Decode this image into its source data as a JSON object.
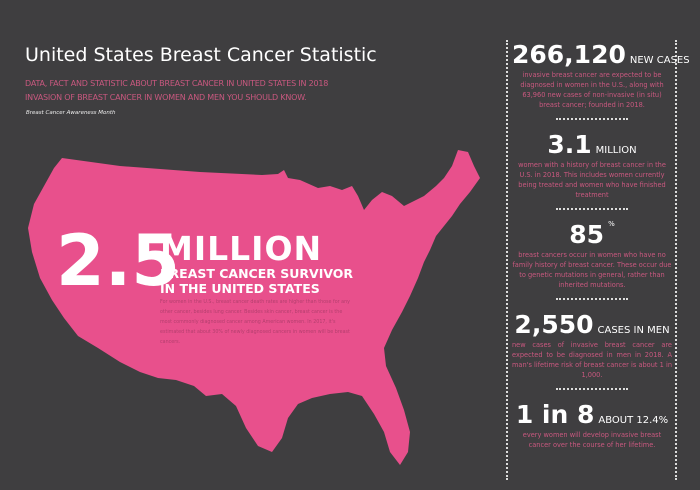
{
  "header": {
    "title": "United States Breast Cancer Statistic",
    "subtitle_lines": [
      "DATA, FACT AND STATISTIC ABOUT BREAST CANCER IN UNITED STATES IN 2018",
      "INVASION OF BREAST CANCER IN WOMEN AND MEN YOU SHOULD KNOW."
    ],
    "tagline": "Breast Cancer Awareness Month"
  },
  "colors": {
    "background": "#3f3e40",
    "accent": "#e8508c",
    "text_accent": "#c9587f"
  },
  "hero": {
    "number": "2.5",
    "unit": "MILLION",
    "line1": "BREAST CANCER SURVIVOR",
    "line2": "IN THE UNITED STATES",
    "body": "For women in the U.S., breast cancer death rates are higher than those for any other cancer, besides lung cancer. Besides skin cancer, breast cancer is the most commonly diagnosed cancer among American women. In 2017, it's estimated that about 30% of newly diagnosed cancers in women will be breast cancers."
  },
  "stats": [
    {
      "number": "266,120",
      "unit": "NEW CASES",
      "desc": "invasive breast cancer are expected to be diagnosed in women in the U.S., along with 63,960 new cases of non-invasive (in situ) breast cancer; founded in 2018."
    },
    {
      "number": "3.1",
      "unit": "MILLION",
      "desc": "women with a history of breast cancer in the U.S. in 2018. This includes women currently being treated and women who have finished treatment"
    },
    {
      "number": "85",
      "unit": "%",
      "desc": "breast cancers occur in women who have no family history of breast cancer. These occur due to genetic mutations in general, rather than inherited mutations."
    },
    {
      "number": "2,550",
      "unit": "CASES IN MEN",
      "desc": "new cases of invasive breast cancer are expected to be diagnosed in men in 2018. A man's lifetime risk of breast cancer is about 1 in 1,000."
    },
    {
      "number": "1 in 8",
      "unit": "ABOUT 12.4%",
      "desc": "every women will develop invasive breast cancer over the course of her lifetime."
    }
  ]
}
